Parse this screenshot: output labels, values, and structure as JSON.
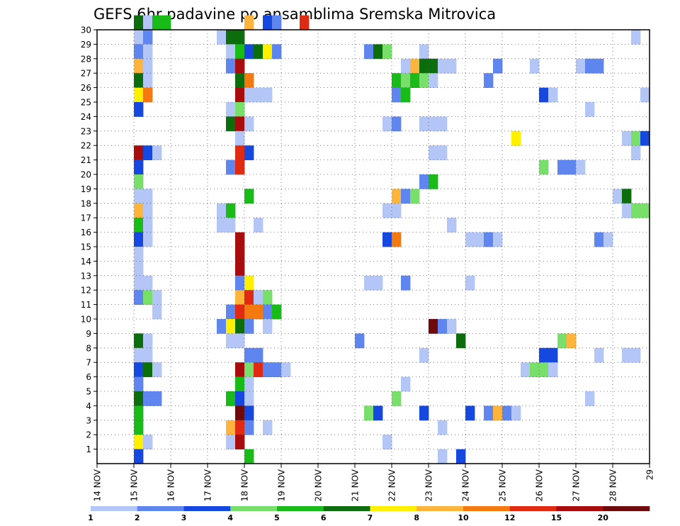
{
  "chart_data": {
    "type": "heatmap",
    "title": "GEFS 6hr padavine po ansamblima Sremska Mitrovica",
    "xlabel": "",
    "ylabel": "",
    "x_ticks": [
      "14 NOV",
      "15 NOV",
      "16 NOV",
      "17 NOV",
      "18 NOV",
      "19 NOV",
      "20 NOV",
      "21 NOV",
      "22 NOV",
      "23 NOV",
      "24 NOV",
      "25 NOV",
      "26 NOV",
      "27 NOV",
      "28 NOV",
      "29"
    ],
    "y_ticks": [
      "1",
      "2",
      "3",
      "4",
      "5",
      "6",
      "7",
      "8",
      "9",
      "10",
      "11",
      "12",
      "13",
      "14",
      "15",
      "16",
      "17",
      "18",
      "19",
      "20",
      "21",
      "22",
      "23",
      "24",
      "25",
      "26",
      "27",
      "28",
      "29",
      "30"
    ],
    "x_range_steps": [
      0,
      60
    ],
    "y_range": [
      0,
      30
    ],
    "grid": true,
    "legend": {
      "placement": "bottom",
      "labels": [
        "1",
        "2",
        "3",
        "4",
        "5",
        "6",
        "7",
        "8",
        "10",
        "12",
        "15",
        "20"
      ],
      "colors": [
        "#b3c6f5",
        "#5f86ee",
        "#1448df",
        "#78e06a",
        "#18bb18",
        "#0b6d0b",
        "#fff000",
        "#ffb43c",
        "#f47a10",
        "#e02a12",
        "#a80c0c",
        "#6e0a0a"
      ]
    },
    "cells": [
      [
        4,
        30,
        5
      ],
      [
        5,
        30,
        0
      ],
      [
        6,
        30,
        4
      ],
      [
        7,
        30,
        4
      ],
      [
        16,
        30,
        7
      ],
      [
        18,
        30,
        2
      ],
      [
        19,
        30,
        1
      ],
      [
        22,
        30,
        9
      ],
      [
        4,
        29,
        0
      ],
      [
        5,
        29,
        1
      ],
      [
        13,
        29,
        0
      ],
      [
        14,
        29,
        5
      ],
      [
        15,
        29,
        5
      ],
      [
        58,
        29,
        0
      ],
      [
        4,
        28,
        1
      ],
      [
        5,
        28,
        0
      ],
      [
        14,
        28,
        0
      ],
      [
        15,
        28,
        4
      ],
      [
        16,
        28,
        2
      ],
      [
        17,
        28,
        5
      ],
      [
        18,
        28,
        6
      ],
      [
        19,
        28,
        1
      ],
      [
        29,
        28,
        1
      ],
      [
        30,
        28,
        5
      ],
      [
        31,
        28,
        3
      ],
      [
        35,
        28,
        0
      ],
      [
        4,
        27,
        7
      ],
      [
        5,
        27,
        0
      ],
      [
        14,
        27,
        1
      ],
      [
        15,
        27,
        10
      ],
      [
        33,
        27,
        0
      ],
      [
        34,
        27,
        7
      ],
      [
        35,
        27,
        5
      ],
      [
        36,
        27,
        5
      ],
      [
        37,
        27,
        0
      ],
      [
        38,
        27,
        0
      ],
      [
        43,
        27,
        1
      ],
      [
        47,
        27,
        0
      ],
      [
        52,
        27,
        0
      ],
      [
        53,
        27,
        1
      ],
      [
        54,
        27,
        1
      ],
      [
        4,
        26,
        5
      ],
      [
        5,
        26,
        0
      ],
      [
        15,
        26,
        5
      ],
      [
        16,
        26,
        8
      ],
      [
        32,
        26,
        4
      ],
      [
        33,
        26,
        3
      ],
      [
        34,
        26,
        4
      ],
      [
        35,
        26,
        3
      ],
      [
        36,
        26,
        0
      ],
      [
        42,
        26,
        1
      ],
      [
        4,
        25,
        6
      ],
      [
        5,
        25,
        8
      ],
      [
        15,
        25,
        10
      ],
      [
        16,
        25,
        0
      ],
      [
        17,
        25,
        0
      ],
      [
        18,
        25,
        0
      ],
      [
        32,
        25,
        1
      ],
      [
        33,
        25,
        4
      ],
      [
        48,
        25,
        2
      ],
      [
        49,
        25,
        0
      ],
      [
        59,
        25,
        0
      ],
      [
        4,
        24,
        2
      ],
      [
        14,
        24,
        0
      ],
      [
        15,
        24,
        3
      ],
      [
        53,
        24,
        0
      ],
      [
        14,
        23,
        5
      ],
      [
        15,
        23,
        10
      ],
      [
        16,
        23,
        0
      ],
      [
        31,
        23,
        0
      ],
      [
        32,
        23,
        1
      ],
      [
        35,
        23,
        0
      ],
      [
        36,
        23,
        0
      ],
      [
        37,
        23,
        0
      ],
      [
        15,
        22,
        0
      ],
      [
        45,
        22,
        6
      ],
      [
        57,
        22,
        0
      ],
      [
        58,
        22,
        3
      ],
      [
        59,
        22,
        2
      ],
      [
        4,
        21,
        10
      ],
      [
        5,
        21,
        2
      ],
      [
        6,
        21,
        0
      ],
      [
        15,
        21,
        9
      ],
      [
        16,
        21,
        2
      ],
      [
        36,
        21,
        0
      ],
      [
        37,
        21,
        0
      ],
      [
        58,
        21,
        0
      ],
      [
        4,
        20,
        2
      ],
      [
        14,
        20,
        1
      ],
      [
        15,
        20,
        9
      ],
      [
        48,
        20,
        3
      ],
      [
        50,
        20,
        1
      ],
      [
        51,
        20,
        1
      ],
      [
        52,
        20,
        0
      ],
      [
        4,
        19,
        3
      ],
      [
        35,
        19,
        1
      ],
      [
        36,
        19,
        4
      ],
      [
        4,
        18,
        0
      ],
      [
        5,
        18,
        0
      ],
      [
        16,
        18,
        4
      ],
      [
        32,
        18,
        7
      ],
      [
        33,
        18,
        1
      ],
      [
        34,
        18,
        3
      ],
      [
        56,
        18,
        0
      ],
      [
        57,
        18,
        5
      ],
      [
        4,
        17,
        7
      ],
      [
        5,
        17,
        0
      ],
      [
        13,
        17,
        0
      ],
      [
        14,
        17,
        4
      ],
      [
        31,
        17,
        0
      ],
      [
        32,
        17,
        0
      ],
      [
        57,
        17,
        0
      ],
      [
        58,
        17,
        3
      ],
      [
        59,
        17,
        3
      ],
      [
        4,
        16,
        4
      ],
      [
        5,
        16,
        0
      ],
      [
        13,
        16,
        0
      ],
      [
        14,
        16,
        0
      ],
      [
        17,
        16,
        0
      ],
      [
        38,
        16,
        0
      ],
      [
        4,
        15,
        2
      ],
      [
        5,
        15,
        0
      ],
      [
        15,
        15,
        10
      ],
      [
        31,
        15,
        2
      ],
      [
        32,
        15,
        8
      ],
      [
        40,
        15,
        0
      ],
      [
        41,
        15,
        0
      ],
      [
        42,
        15,
        1
      ],
      [
        43,
        15,
        0
      ],
      [
        54,
        15,
        1
      ],
      [
        55,
        15,
        0
      ],
      [
        4,
        14,
        0
      ],
      [
        15,
        14,
        10
      ],
      [
        4,
        13,
        0
      ],
      [
        15,
        13,
        10
      ],
      [
        4,
        12,
        0
      ],
      [
        5,
        12,
        0
      ],
      [
        15,
        12,
        1
      ],
      [
        16,
        12,
        6
      ],
      [
        29,
        12,
        0
      ],
      [
        30,
        12,
        0
      ],
      [
        33,
        12,
        1
      ],
      [
        40,
        12,
        0
      ],
      [
        4,
        11,
        1
      ],
      [
        5,
        11,
        3
      ],
      [
        6,
        11,
        0
      ],
      [
        15,
        11,
        7
      ],
      [
        16,
        11,
        9
      ],
      [
        17,
        11,
        0
      ],
      [
        18,
        11,
        3
      ],
      [
        6,
        10,
        0
      ],
      [
        14,
        10,
        1
      ],
      [
        15,
        10,
        9
      ],
      [
        16,
        10,
        8
      ],
      [
        17,
        10,
        8
      ],
      [
        18,
        10,
        1
      ],
      [
        19,
        10,
        4
      ],
      [
        13,
        9,
        1
      ],
      [
        14,
        9,
        6
      ],
      [
        15,
        9,
        5
      ],
      [
        16,
        9,
        1
      ],
      [
        18,
        9,
        0
      ],
      [
        36,
        9,
        11
      ],
      [
        37,
        9,
        1
      ],
      [
        38,
        9,
        0
      ],
      [
        4,
        8,
        5
      ],
      [
        5,
        8,
        0
      ],
      [
        14,
        8,
        0
      ],
      [
        15,
        8,
        0
      ],
      [
        28,
        8,
        1
      ],
      [
        39,
        8,
        5
      ],
      [
        50,
        8,
        3
      ],
      [
        51,
        8,
        7
      ],
      [
        4,
        7,
        0
      ],
      [
        5,
        7,
        0
      ],
      [
        16,
        7,
        1
      ],
      [
        17,
        7,
        1
      ],
      [
        35,
        7,
        0
      ],
      [
        48,
        7,
        2
      ],
      [
        49,
        7,
        2
      ],
      [
        54,
        7,
        0
      ],
      [
        57,
        7,
        0
      ],
      [
        58,
        7,
        0
      ],
      [
        4,
        6,
        2
      ],
      [
        5,
        6,
        5
      ],
      [
        6,
        6,
        0
      ],
      [
        15,
        6,
        10
      ],
      [
        16,
        6,
        3
      ],
      [
        17,
        6,
        9
      ],
      [
        18,
        6,
        1
      ],
      [
        19,
        6,
        1
      ],
      [
        20,
        6,
        0
      ],
      [
        46,
        6,
        0
      ],
      [
        47,
        6,
        3
      ],
      [
        48,
        6,
        3
      ],
      [
        49,
        6,
        0
      ],
      [
        4,
        5,
        1
      ],
      [
        15,
        5,
        4
      ],
      [
        16,
        5,
        0
      ],
      [
        33,
        5,
        0
      ],
      [
        4,
        4,
        5
      ],
      [
        5,
        4,
        1
      ],
      [
        6,
        4,
        1
      ],
      [
        14,
        4,
        4
      ],
      [
        15,
        4,
        2
      ],
      [
        16,
        4,
        0
      ],
      [
        32,
        4,
        3
      ],
      [
        53,
        4,
        0
      ],
      [
        4,
        3,
        4
      ],
      [
        15,
        3,
        11
      ],
      [
        16,
        3,
        2
      ],
      [
        29,
        3,
        3
      ],
      [
        30,
        3,
        2
      ],
      [
        35,
        3,
        2
      ],
      [
        40,
        3,
        2
      ],
      [
        42,
        3,
        1
      ],
      [
        43,
        3,
        7
      ],
      [
        44,
        3,
        1
      ],
      [
        45,
        3,
        0
      ],
      [
        4,
        2,
        4
      ],
      [
        14,
        2,
        7
      ],
      [
        15,
        2,
        9
      ],
      [
        16,
        2,
        1
      ],
      [
        18,
        2,
        0
      ],
      [
        37,
        2,
        0
      ],
      [
        4,
        1,
        6
      ],
      [
        5,
        1,
        0
      ],
      [
        14,
        1,
        0
      ],
      [
        15,
        1,
        10
      ],
      [
        31,
        1,
        0
      ],
      [
        4,
        0,
        2
      ],
      [
        16,
        0,
        4
      ],
      [
        37,
        0,
        0
      ],
      [
        39,
        0,
        2
      ]
    ]
  }
}
